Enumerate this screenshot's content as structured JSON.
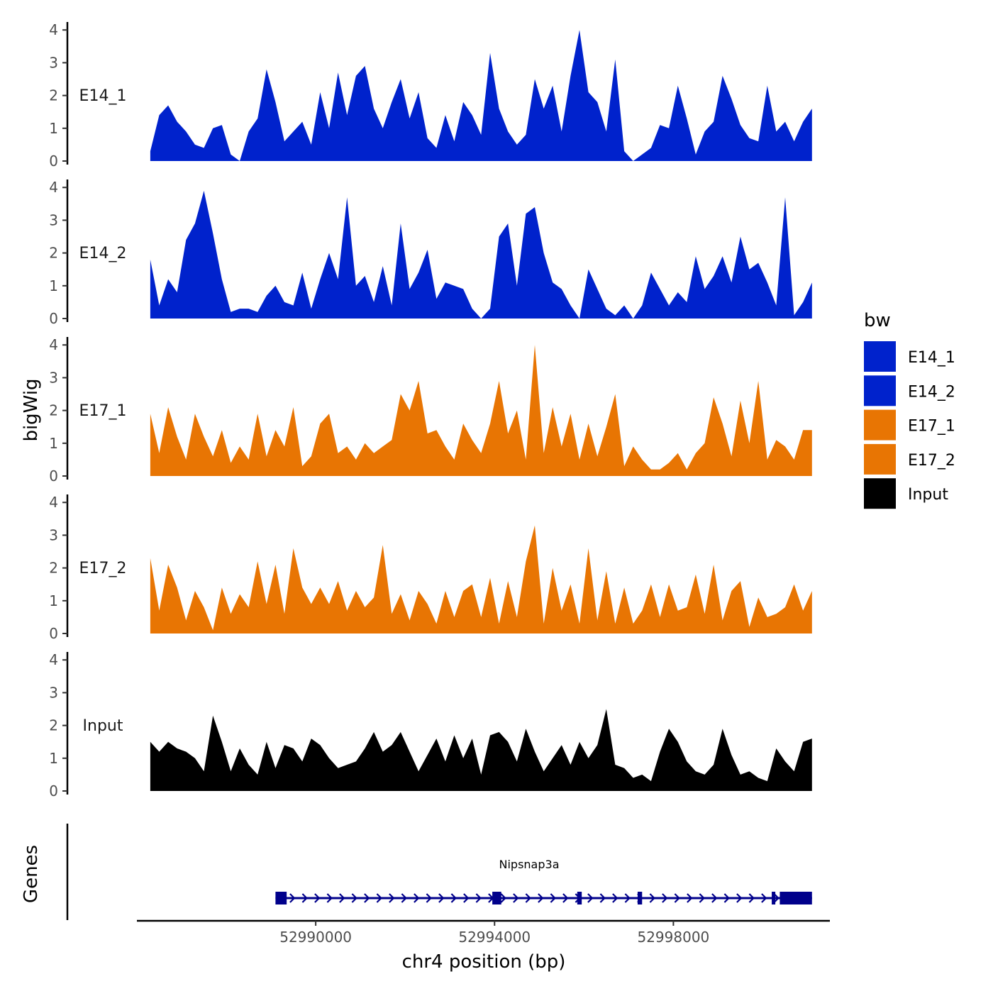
{
  "chart_data": {
    "type": "area",
    "title": "",
    "y_axis_title": "bigWig",
    "gene_axis_title": "Genes",
    "x_axis_title": "chr4 position (bp)",
    "x_range": [
      52986000,
      53001500
    ],
    "x_ticks": [
      52990000,
      52994000,
      52998000
    ],
    "x_tick_labels": [
      "52990000",
      "52994000",
      "52998000"
    ],
    "y_range": [
      0,
      4.2
    ],
    "y_ticks": [
      0,
      1,
      2,
      3,
      4
    ],
    "y_tick_labels": [
      "0",
      "1",
      "2",
      "3",
      "4"
    ],
    "legend": {
      "title": "bw",
      "placement": "right",
      "entries": [
        {
          "label": "E14_1",
          "color": "#0022cc"
        },
        {
          "label": "E14_2",
          "color": "#0022cc"
        },
        {
          "label": "E17_1",
          "color": "#e87503"
        },
        {
          "label": "E17_2",
          "color": "#e87503"
        },
        {
          "label": "Input",
          "color": "#000000"
        }
      ]
    },
    "series": [
      {
        "name": "E14_1",
        "color": "#0022cc",
        "x": [
          52986300,
          52986500,
          52986700,
          52986900,
          52987100,
          52987300,
          52987500,
          52987700,
          52987900,
          52988100,
          52988300,
          52988500,
          52988700,
          52988900,
          52989100,
          52989300,
          52989500,
          52989700,
          52989900,
          52990100,
          52990300,
          52990500,
          52990700,
          52990900,
          52991100,
          52991300,
          52991500,
          52991700,
          52991900,
          52992100,
          52992300,
          52992500,
          52992700,
          52992900,
          52993100,
          52993300,
          52993500,
          52993700,
          52993900,
          52994100,
          52994300,
          52994500,
          52994700,
          52994900,
          52995100,
          52995300,
          52995500,
          52995700,
          52995900,
          52996100,
          52996300,
          52996500,
          52996700,
          52996900,
          52997100,
          52997300,
          52997500,
          52997700,
          52997900,
          52998100,
          52998300,
          52998500,
          52998700,
          52998900,
          52999100,
          52999300,
          52999500,
          52999700,
          52999900,
          53000100,
          53000300,
          53000500,
          53000700,
          53000900,
          53001100
        ],
        "values": [
          0.3,
          1.4,
          1.7,
          1.2,
          0.9,
          0.5,
          0.4,
          1.0,
          1.1,
          0.2,
          0.0,
          0.9,
          1.3,
          2.8,
          1.8,
          0.6,
          0.9,
          1.2,
          0.5,
          2.1,
          1.0,
          2.7,
          1.4,
          2.6,
          2.9,
          1.6,
          1.0,
          1.8,
          2.5,
          1.3,
          2.1,
          0.7,
          0.4,
          1.4,
          0.6,
          1.8,
          1.4,
          0.8,
          3.3,
          1.6,
          0.9,
          0.5,
          0.8,
          2.5,
          1.6,
          2.3,
          0.9,
          2.6,
          4.0,
          2.1,
          1.8,
          0.9,
          3.1,
          0.3,
          0.0,
          0.2,
          0.4,
          1.1,
          1.0,
          2.3,
          1.3,
          0.2,
          0.9,
          1.2,
          2.6,
          1.9,
          1.1,
          0.7,
          0.6,
          2.3,
          0.9,
          1.2,
          0.6,
          1.2,
          1.6
        ]
      },
      {
        "name": "E14_2",
        "color": "#0022cc",
        "x": [
          52986300,
          52986500,
          52986700,
          52986900,
          52987100,
          52987300,
          52987500,
          52987700,
          52987900,
          52988100,
          52988300,
          52988500,
          52988700,
          52988900,
          52989100,
          52989300,
          52989500,
          52989700,
          52989900,
          52990100,
          52990300,
          52990500,
          52990700,
          52990900,
          52991100,
          52991300,
          52991500,
          52991700,
          52991900,
          52992100,
          52992300,
          52992500,
          52992700,
          52992900,
          52993100,
          52993300,
          52993500,
          52993700,
          52993900,
          52994100,
          52994300,
          52994500,
          52994700,
          52994900,
          52995100,
          52995300,
          52995500,
          52995700,
          52995900,
          52996100,
          52996300,
          52996500,
          52996700,
          52996900,
          52997100,
          52997300,
          52997500,
          52997700,
          52997900,
          52998100,
          52998300,
          52998500,
          52998700,
          52998900,
          52999100,
          52999300,
          52999500,
          52999700,
          52999900,
          53000100,
          53000300,
          53000500,
          53000700,
          53000900,
          53001100
        ],
        "values": [
          1.8,
          0.4,
          1.2,
          0.8,
          2.4,
          2.9,
          3.9,
          2.6,
          1.2,
          0.2,
          0.3,
          0.3,
          0.2,
          0.7,
          1.0,
          0.5,
          0.4,
          1.4,
          0.3,
          1.2,
          2.0,
          1.2,
          3.7,
          1.0,
          1.3,
          0.5,
          1.6,
          0.4,
          2.9,
          0.9,
          1.4,
          2.1,
          0.6,
          1.1,
          1.0,
          0.9,
          0.3,
          0.0,
          0.3,
          2.5,
          2.9,
          1.0,
          3.2,
          3.4,
          2.0,
          1.1,
          0.9,
          0.4,
          0.0,
          1.5,
          0.9,
          0.3,
          0.1,
          0.4,
          0.0,
          0.4,
          1.4,
          0.9,
          0.4,
          0.8,
          0.5,
          1.9,
          0.9,
          1.3,
          1.9,
          1.1,
          2.5,
          1.5,
          1.7,
          1.1,
          0.4,
          3.7,
          0.1,
          0.5,
          1.1
        ]
      },
      {
        "name": "E17_1",
        "color": "#e87503",
        "x": [
          52986300,
          52986500,
          52986700,
          52986900,
          52987100,
          52987300,
          52987500,
          52987700,
          52987900,
          52988100,
          52988300,
          52988500,
          52988700,
          52988900,
          52989100,
          52989300,
          52989500,
          52989700,
          52989900,
          52990100,
          52990300,
          52990500,
          52990700,
          52990900,
          52991100,
          52991300,
          52991500,
          52991700,
          52991900,
          52992100,
          52992300,
          52992500,
          52992700,
          52992900,
          52993100,
          52993300,
          52993500,
          52993700,
          52993900,
          52994100,
          52994300,
          52994500,
          52994700,
          52994900,
          52995100,
          52995300,
          52995500,
          52995700,
          52995900,
          52996100,
          52996300,
          52996500,
          52996700,
          52996900,
          52997100,
          52997300,
          52997500,
          52997700,
          52997900,
          52998100,
          52998300,
          52998500,
          52998700,
          52998900,
          52999100,
          52999300,
          52999500,
          52999700,
          52999900,
          53000100,
          53000300,
          53000500,
          53000700,
          53000900,
          53001100
        ],
        "values": [
          1.9,
          0.7,
          2.1,
          1.2,
          0.5,
          1.9,
          1.2,
          0.6,
          1.4,
          0.4,
          0.9,
          0.5,
          1.9,
          0.6,
          1.4,
          0.9,
          2.1,
          0.3,
          0.6,
          1.6,
          1.9,
          0.7,
          0.9,
          0.5,
          1.0,
          0.7,
          0.9,
          1.1,
          2.5,
          2.0,
          2.9,
          1.3,
          1.4,
          0.9,
          0.5,
          1.6,
          1.1,
          0.7,
          1.6,
          2.9,
          1.3,
          2.0,
          0.5,
          4.0,
          0.7,
          2.1,
          0.9,
          1.9,
          0.5,
          1.6,
          0.6,
          1.5,
          2.5,
          0.3,
          0.9,
          0.5,
          0.2,
          0.2,
          0.4,
          0.7,
          0.2,
          0.7,
          1.0,
          2.4,
          1.6,
          0.6,
          2.3,
          1.0,
          2.9,
          0.5,
          1.1,
          0.9,
          0.5,
          1.4,
          1.4
        ]
      },
      {
        "name": "E17_2",
        "color": "#e87503",
        "x": [
          52986300,
          52986500,
          52986700,
          52986900,
          52987100,
          52987300,
          52987500,
          52987700,
          52987900,
          52988100,
          52988300,
          52988500,
          52988700,
          52988900,
          52989100,
          52989300,
          52989500,
          52989700,
          52989900,
          52990100,
          52990300,
          52990500,
          52990700,
          52990900,
          52991100,
          52991300,
          52991500,
          52991700,
          52991900,
          52992100,
          52992300,
          52992500,
          52992700,
          52992900,
          52993100,
          52993300,
          52993500,
          52993700,
          52993900,
          52994100,
          52994300,
          52994500,
          52994700,
          52994900,
          52995100,
          52995300,
          52995500,
          52995700,
          52995900,
          52996100,
          52996300,
          52996500,
          52996700,
          52996900,
          52997100,
          52997300,
          52997500,
          52997700,
          52997900,
          52998100,
          52998300,
          52998500,
          52998700,
          52998900,
          52999100,
          52999300,
          52999500,
          52999700,
          52999900,
          53000100,
          53000300,
          53000500,
          53000700,
          53000900,
          53001100
        ],
        "values": [
          2.3,
          0.7,
          2.1,
          1.4,
          0.4,
          1.3,
          0.8,
          0.1,
          1.4,
          0.6,
          1.2,
          0.8,
          2.2,
          0.9,
          2.1,
          0.6,
          2.6,
          1.4,
          0.9,
          1.4,
          0.9,
          1.6,
          0.7,
          1.3,
          0.8,
          1.1,
          2.7,
          0.6,
          1.2,
          0.4,
          1.3,
          0.9,
          0.3,
          1.3,
          0.5,
          1.3,
          1.5,
          0.5,
          1.7,
          0.3,
          1.6,
          0.5,
          2.2,
          3.3,
          0.3,
          2.0,
          0.7,
          1.5,
          0.3,
          2.6,
          0.4,
          1.9,
          0.3,
          1.4,
          0.3,
          0.7,
          1.5,
          0.5,
          1.5,
          0.7,
          0.8,
          1.8,
          0.6,
          2.1,
          0.4,
          1.3,
          1.6,
          0.2,
          1.1,
          0.5,
          0.6,
          0.8,
          1.5,
          0.7,
          1.3
        ]
      },
      {
        "name": "Input",
        "color": "#000000",
        "x": [
          52986300,
          52986500,
          52986700,
          52986900,
          52987100,
          52987300,
          52987500,
          52987700,
          52987900,
          52988100,
          52988300,
          52988500,
          52988700,
          52988900,
          52989100,
          52989300,
          52989500,
          52989700,
          52989900,
          52990100,
          52990300,
          52990500,
          52990700,
          52990900,
          52991100,
          52991300,
          52991500,
          52991700,
          52991900,
          52992100,
          52992300,
          52992500,
          52992700,
          52992900,
          52993100,
          52993300,
          52993500,
          52993700,
          52993900,
          52994100,
          52994300,
          52994500,
          52994700,
          52994900,
          52995100,
          52995300,
          52995500,
          52995700,
          52995900,
          52996100,
          52996300,
          52996500,
          52996700,
          52996900,
          52997100,
          52997300,
          52997500,
          52997700,
          52997900,
          52998100,
          52998300,
          52998500,
          52998700,
          52998900,
          52999100,
          52999300,
          52999500,
          52999700,
          52999900,
          53000100,
          53000300,
          53000500,
          53000700,
          53000900,
          53001100
        ],
        "values": [
          1.5,
          1.2,
          1.5,
          1.3,
          1.2,
          1.0,
          0.6,
          2.3,
          1.5,
          0.6,
          1.3,
          0.8,
          0.5,
          1.5,
          0.7,
          1.4,
          1.3,
          0.9,
          1.6,
          1.4,
          1.0,
          0.7,
          0.8,
          0.9,
          1.3,
          1.8,
          1.2,
          1.4,
          1.8,
          1.2,
          0.6,
          1.1,
          1.6,
          0.9,
          1.7,
          1.0,
          1.6,
          0.5,
          1.7,
          1.8,
          1.5,
          0.9,
          1.9,
          1.2,
          0.6,
          1.0,
          1.4,
          0.8,
          1.5,
          1.0,
          1.4,
          2.5,
          0.8,
          0.7,
          0.4,
          0.5,
          0.3,
          1.2,
          1.9,
          1.5,
          0.9,
          0.6,
          0.5,
          0.8,
          1.9,
          1.1,
          0.5,
          0.6,
          0.4,
          0.3,
          1.3,
          0.9,
          0.6,
          1.5,
          1.6
        ]
      }
    ],
    "genes": [
      {
        "name": "Nipsnap3a",
        "start": 52989100,
        "end": 53001100,
        "strand": "+",
        "color": "#00008b",
        "exons": [
          [
            52989100,
            52989350
          ],
          [
            52993950,
            52994150
          ],
          [
            52995850,
            52995950
          ],
          [
            52997200,
            52997300
          ],
          [
            53000200,
            53000280
          ],
          [
            53000380,
            53001100
          ]
        ]
      }
    ]
  }
}
